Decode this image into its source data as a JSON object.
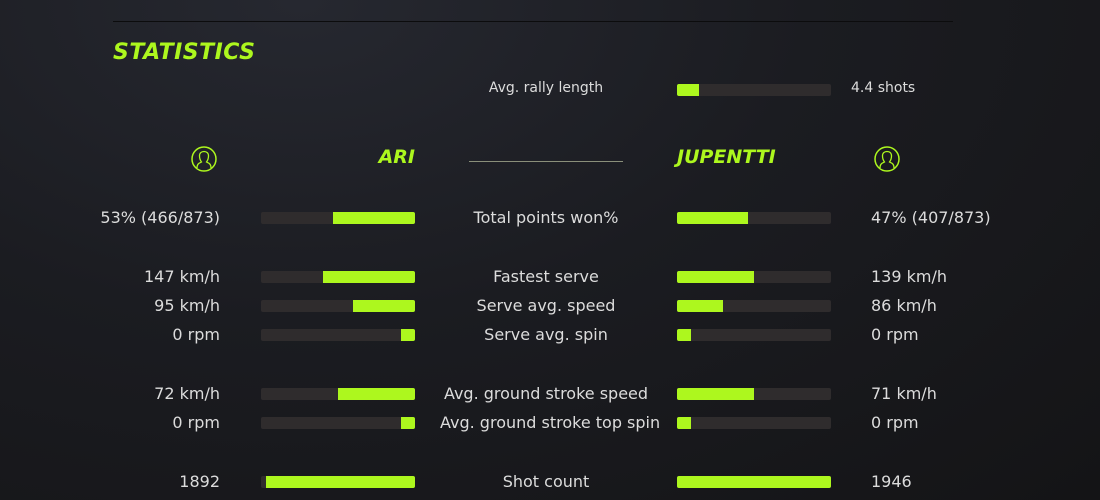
{
  "title": "STATISTICS",
  "accent": "#adf71e",
  "rally": {
    "label": "Avg. rally length",
    "value": "4.4 shots",
    "fill": 0.14
  },
  "players": {
    "left": {
      "name": "ARI",
      "icon": "user-icon"
    },
    "right": {
      "name": "JUPENTTI",
      "icon": "user-icon"
    }
  },
  "rows": [
    {
      "label": "Total points won%",
      "left": "53% (466/873)",
      "right": "47% (407/873)",
      "left_fill": 0.53,
      "right_fill": 0.46
    },
    {
      "label": "Fastest serve",
      "left": "147 km/h",
      "right": "139 km/h",
      "left_fill": 0.6,
      "right_fill": 0.5
    },
    {
      "label": "Serve avg. speed",
      "left": "95 km/h",
      "right": "86 km/h",
      "left_fill": 0.4,
      "right_fill": 0.3
    },
    {
      "label": "Serve avg. spin",
      "left": "0 rpm",
      "right": "0 rpm",
      "left_fill": 0.09,
      "right_fill": 0.09
    },
    {
      "label": "Avg. ground stroke speed",
      "left": "72 km/h",
      "right": "71 km/h",
      "left_fill": 0.5,
      "right_fill": 0.5
    },
    {
      "label": "Avg. ground stroke top spin",
      "left": "0 rpm",
      "right": "0 rpm",
      "left_fill": 0.09,
      "right_fill": 0.09
    },
    {
      "label": "Shot count",
      "left": "1892",
      "right": "1946",
      "left_fill": 0.97,
      "right_fill": 1.0
    }
  ]
}
